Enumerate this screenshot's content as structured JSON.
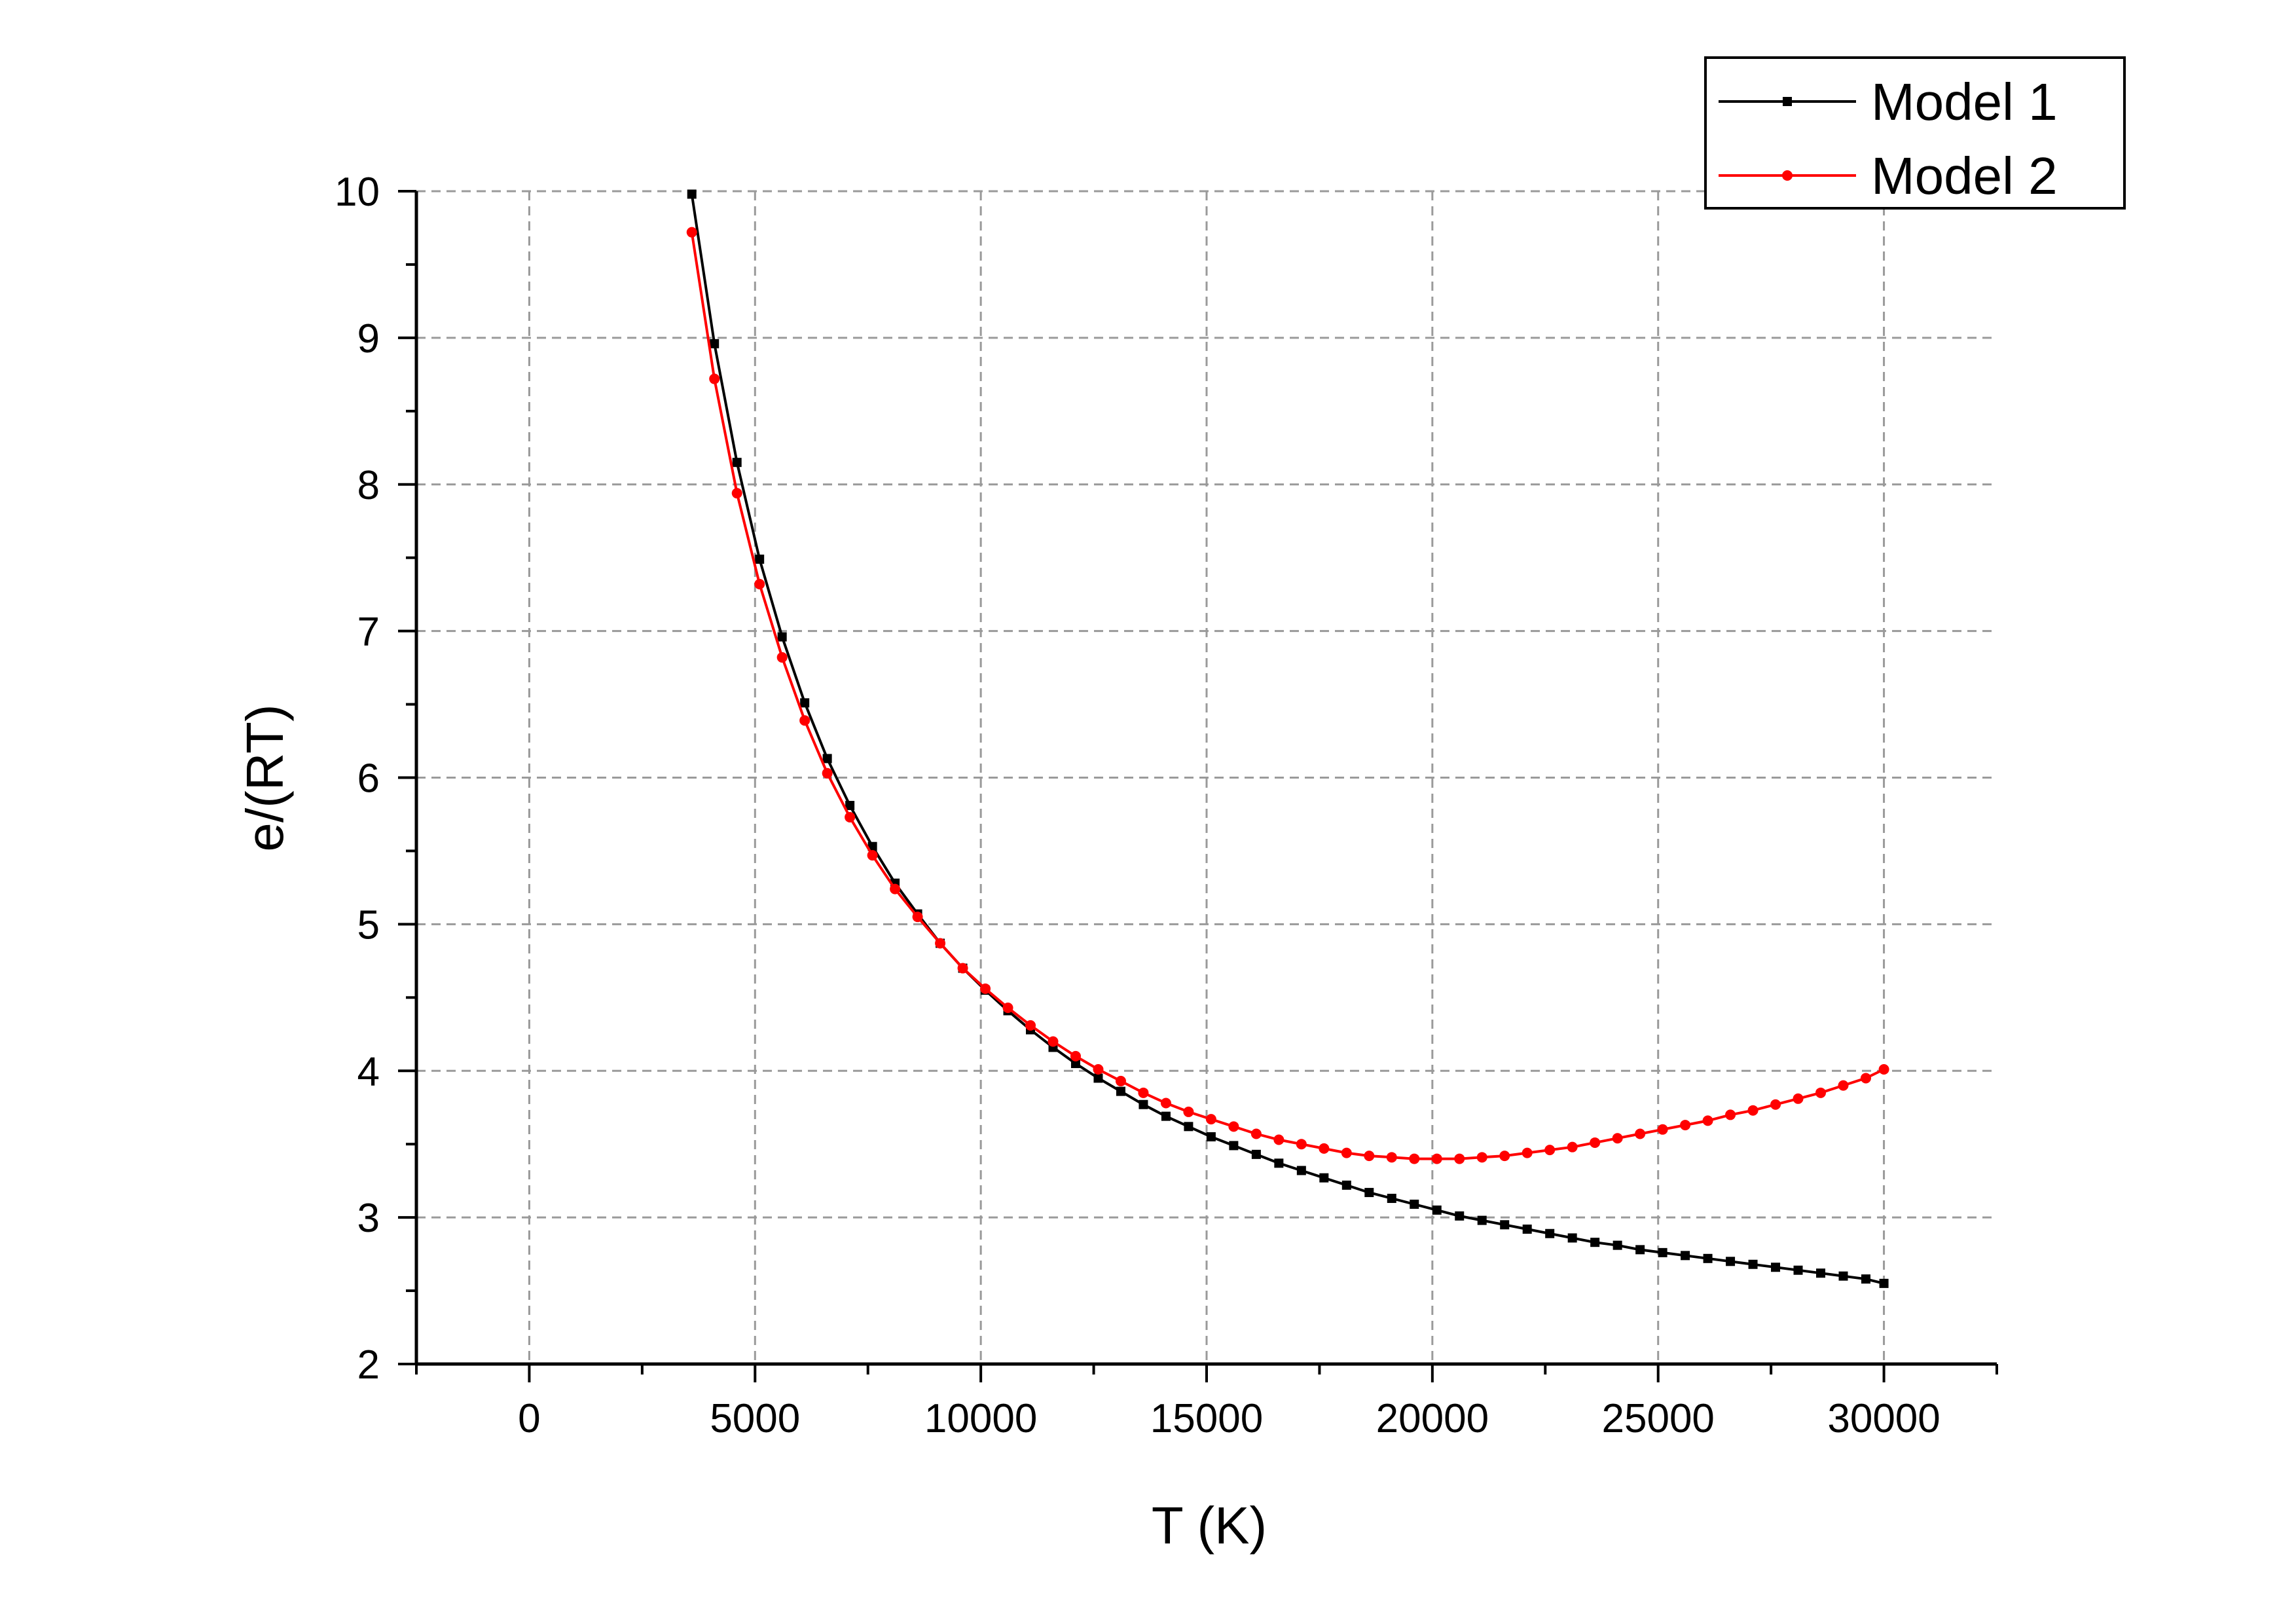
{
  "chart_data": {
    "type": "line",
    "title": "",
    "xlabel": "T (K)",
    "ylabel": "e/(RT)",
    "xlim": [
      -2500,
      32500
    ],
    "ylim": [
      2,
      10
    ],
    "x_ticks": [
      0,
      5000,
      10000,
      15000,
      20000,
      25000,
      30000
    ],
    "x_tick_labels": [
      "0",
      "5000",
      "10000",
      "15000",
      "20000",
      "25000",
      "30000"
    ],
    "y_ticks": [
      2,
      3,
      4,
      5,
      6,
      7,
      8,
      9,
      10
    ],
    "y_tick_labels": [
      "2",
      "3",
      "4",
      "5",
      "6",
      "7",
      "8",
      "9",
      "10"
    ],
    "grid": "dashed gray at major ticks",
    "legend_position": "top-right",
    "series": [
      {
        "name": "Model 1",
        "color": "#000000",
        "marker": "square",
        "x": [
          3600,
          4100,
          4600,
          5100,
          5600,
          6100,
          6600,
          7100,
          7600,
          8100,
          8600,
          9100,
          9600,
          10100,
          10600,
          11100,
          11600,
          12100,
          12600,
          13100,
          13600,
          14100,
          14600,
          15100,
          15600,
          16100,
          16600,
          17100,
          17600,
          18100,
          18600,
          19100,
          19600,
          20100,
          20600,
          21100,
          21600,
          22100,
          22600,
          23100,
          23600,
          24100,
          24600,
          25100,
          25600,
          26100,
          26600,
          27100,
          27600,
          28100,
          28600,
          29100,
          29600,
          30000
        ],
        "y": [
          9.98,
          8.96,
          8.15,
          7.49,
          6.96,
          6.51,
          6.13,
          5.81,
          5.53,
          5.28,
          5.07,
          4.87,
          4.7,
          4.55,
          4.41,
          4.28,
          4.16,
          4.05,
          3.95,
          3.86,
          3.77,
          3.69,
          3.62,
          3.55,
          3.49,
          3.43,
          3.37,
          3.32,
          3.27,
          3.22,
          3.17,
          3.13,
          3.09,
          3.05,
          3.01,
          2.98,
          2.95,
          2.92,
          2.89,
          2.86,
          2.83,
          2.81,
          2.78,
          2.76,
          2.74,
          2.72,
          2.7,
          2.68,
          2.66,
          2.64,
          2.62,
          2.6,
          2.58,
          2.55
        ]
      },
      {
        "name": "Model 2",
        "color": "#ff0000",
        "marker": "circle",
        "x": [
          3600,
          4100,
          4600,
          5100,
          5600,
          6100,
          6600,
          7100,
          7600,
          8100,
          8600,
          9100,
          9600,
          10100,
          10600,
          11100,
          11600,
          12100,
          12600,
          13100,
          13600,
          14100,
          14600,
          15100,
          15600,
          16100,
          16600,
          17100,
          17600,
          18100,
          18600,
          19100,
          19600,
          20100,
          20600,
          21100,
          21600,
          22100,
          22600,
          23100,
          23600,
          24100,
          24600,
          25100,
          25600,
          26100,
          26600,
          27100,
          27600,
          28100,
          28600,
          29100,
          29600,
          30000
        ],
        "y": [
          9.72,
          8.72,
          7.94,
          7.32,
          6.82,
          6.39,
          6.03,
          5.73,
          5.47,
          5.24,
          5.05,
          4.87,
          4.7,
          4.56,
          4.43,
          4.31,
          4.2,
          4.1,
          4.01,
          3.93,
          3.85,
          3.78,
          3.72,
          3.67,
          3.62,
          3.57,
          3.53,
          3.5,
          3.47,
          3.44,
          3.42,
          3.41,
          3.4,
          3.4,
          3.4,
          3.41,
          3.42,
          3.44,
          3.46,
          3.48,
          3.51,
          3.54,
          3.57,
          3.6,
          3.63,
          3.66,
          3.7,
          3.73,
          3.77,
          3.81,
          3.85,
          3.9,
          3.95,
          4.01
        ]
      }
    ]
  }
}
